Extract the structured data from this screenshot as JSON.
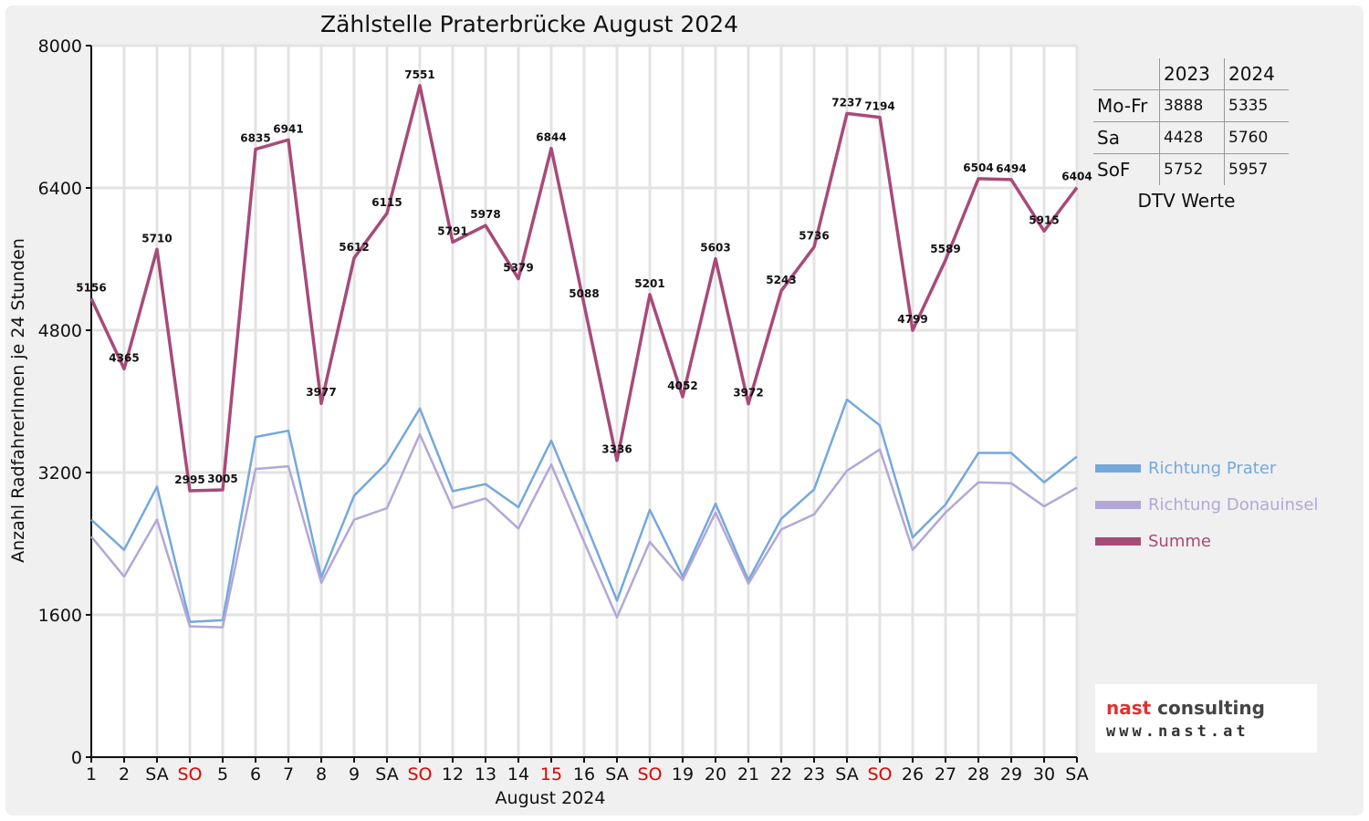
{
  "chart_data": {
    "type": "line",
    "title": "Zählstelle Praterbrücke August 2024",
    "xlabel": "August 2024",
    "ylabel": "Anzahl RadfahrerInnen je 24 Stunden",
    "ylim": [
      0,
      8000
    ],
    "yticks": [
      0,
      1600,
      3200,
      4800,
      6400,
      8000
    ],
    "grid": true,
    "legend_position": "right",
    "categories": [
      "1",
      "2",
      "SA",
      "SO",
      "5",
      "6",
      "7",
      "8",
      "9",
      "SA",
      "SO",
      "12",
      "13",
      "14",
      "15",
      "16",
      "SA",
      "SO",
      "19",
      "20",
      "21",
      "22",
      "23",
      "SA",
      "SO",
      "26",
      "27",
      "28",
      "29",
      "30",
      "SA"
    ],
    "red_categories": [
      3,
      10,
      14,
      17,
      24
    ],
    "series": [
      {
        "name": "Richtung Prater",
        "color": "#75a8dc",
        "values": [
          2670,
          2330,
          3040,
          1520,
          1540,
          3600,
          3670,
          2020,
          2940,
          3310,
          3920,
          2990,
          3070,
          2810,
          3560,
          2670,
          1760,
          2780,
          2030,
          2850,
          1990,
          2680,
          3010,
          4020,
          3730,
          2470,
          2840,
          3420,
          3420,
          3090,
          3380
        ]
      },
      {
        "name": "Richtung Donauinsel",
        "color": "#b3a7d7",
        "values": [
          2480,
          2030,
          2670,
          1470,
          1460,
          3240,
          3270,
          1960,
          2670,
          2800,
          3630,
          2800,
          2910,
          2570,
          3290,
          2420,
          1570,
          2420,
          1990,
          2750,
          1950,
          2560,
          2730,
          3220,
          3460,
          2330,
          2750,
          3090,
          3080,
          2820,
          3030
        ]
      },
      {
        "name": "Summe",
        "color": "#a84a78",
        "values": [
          5156,
          4365,
          5710,
          2995,
          3005,
          6835,
          6941,
          3977,
          5612,
          6115,
          7551,
          5791,
          5978,
          5379,
          6844,
          5088,
          3336,
          5201,
          4052,
          5603,
          3972,
          5243,
          5736,
          7237,
          7194,
          4799,
          5589,
          6504,
          6494,
          5915,
          6404
        ]
      }
    ],
    "data_labels": [
      "5156",
      "4365",
      "5710",
      "2995",
      "3005",
      "6835",
      "6941",
      "3977",
      "5612",
      "6115",
      "7551",
      "5791",
      "5978",
      "5379",
      "6844",
      "5088",
      "3336",
      "5201",
      "4052",
      "5603",
      "3972",
      "5243",
      "5736",
      "7237",
      "7194",
      "4799",
      "5589",
      "6504",
      "6494",
      "5915",
      "6404"
    ]
  },
  "dtv_table": {
    "headers": [
      "",
      "2023",
      "2024"
    ],
    "rows": [
      {
        "label": "Mo-Fr",
        "v2023": "3888",
        "v2024": "5335"
      },
      {
        "label": "Sa",
        "v2023": "4428",
        "v2024": "5760"
      },
      {
        "label": "SoF",
        "v2023": "5752",
        "v2024": "5957"
      }
    ],
    "caption": "DTV Werte"
  },
  "logo": {
    "name_part1": "nast",
    "name_part2": " consulting",
    "url": "www.nast.at"
  }
}
